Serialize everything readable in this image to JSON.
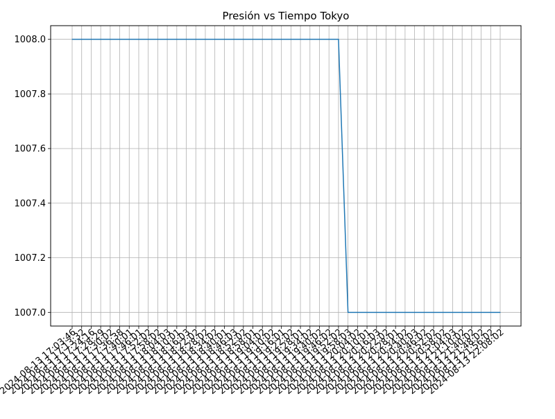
{
  "chart_data": {
    "type": "line",
    "title": "Presión vs Tiempo Tokyo",
    "xlabel": "",
    "ylabel": "",
    "ylim": [
      1006.95,
      1008.05
    ],
    "yticks": [
      1007.0,
      1007.2,
      1007.4,
      1007.6,
      1007.8,
      1008.0
    ],
    "ytick_labels": [
      "1007.0",
      "1007.2",
      "1007.4",
      "1007.6",
      "1007.8",
      "1008.0"
    ],
    "grid": true,
    "x": [
      "2024-08-13 17:03:46",
      "2024-08-13 17:13:32",
      "2024-08-13 17:24:16",
      "2024-08-13 17:28:29",
      "2024-08-13 17:30:02",
      "2024-08-13 17:36:38",
      "2024-08-13 17:40:01",
      "2024-08-13 17:46:01",
      "2024-08-13 17:52:02",
      "2024-08-13 17:58:02",
      "2024-08-13 18:04:03",
      "2024-08-13 18:10:01",
      "2024-08-13 18:16:03",
      "2024-08-13 18:22:02",
      "2024-08-13 18:28:02",
      "2024-08-13 18:34:02",
      "2024-08-13 18:40:01",
      "2024-08-13 18:46:03",
      "2024-08-13 18:52:02",
      "2024-08-13 18:58:01",
      "2024-08-13 19:04:02",
      "2024-08-13 19:10:02",
      "2024-08-13 19:16:01",
      "2024-08-13 19:22:02",
      "2024-08-13 19:28:01",
      "2024-08-13 19:34:02",
      "2024-08-13 19:40:02",
      "2024-08-13 19:46:02",
      "2024-08-13 19:52:02",
      "2024-08-13 19:58:03",
      "2024-08-13 20:04:02",
      "2024-08-13 20:10:01",
      "2024-08-13 20:16:03",
      "2024-08-13 20:22:02",
      "2024-08-13 20:28:01",
      "2024-08-13 20:34:02",
      "2024-08-13 20:40:03",
      "2024-08-13 20:46:02",
      "2024-08-13 20:52:02",
      "2024-08-13 20:58:02",
      "2024-08-13 21:04:03",
      "2024-08-13 21:10:02",
      "2024-08-13 21:40:02",
      "2024-08-13 21:48:02",
      "2024-08-13 21:56:02",
      "2024-08-13 22:08:02"
    ],
    "series": [
      {
        "color": "#1f77b4",
        "values": [
          1008,
          1008,
          1008,
          1008,
          1008,
          1008,
          1008,
          1008,
          1008,
          1008,
          1008,
          1008,
          1008,
          1008,
          1008,
          1008,
          1008,
          1008,
          1008,
          1008,
          1008,
          1008,
          1008,
          1008,
          1008,
          1008,
          1008,
          1008,
          1008,
          1007,
          1007,
          1007,
          1007,
          1007,
          1007,
          1007,
          1007,
          1007,
          1007,
          1007,
          1007,
          1007,
          1007,
          1007,
          1007,
          1007
        ]
      }
    ],
    "grid_color": "#b0b0b0"
  }
}
